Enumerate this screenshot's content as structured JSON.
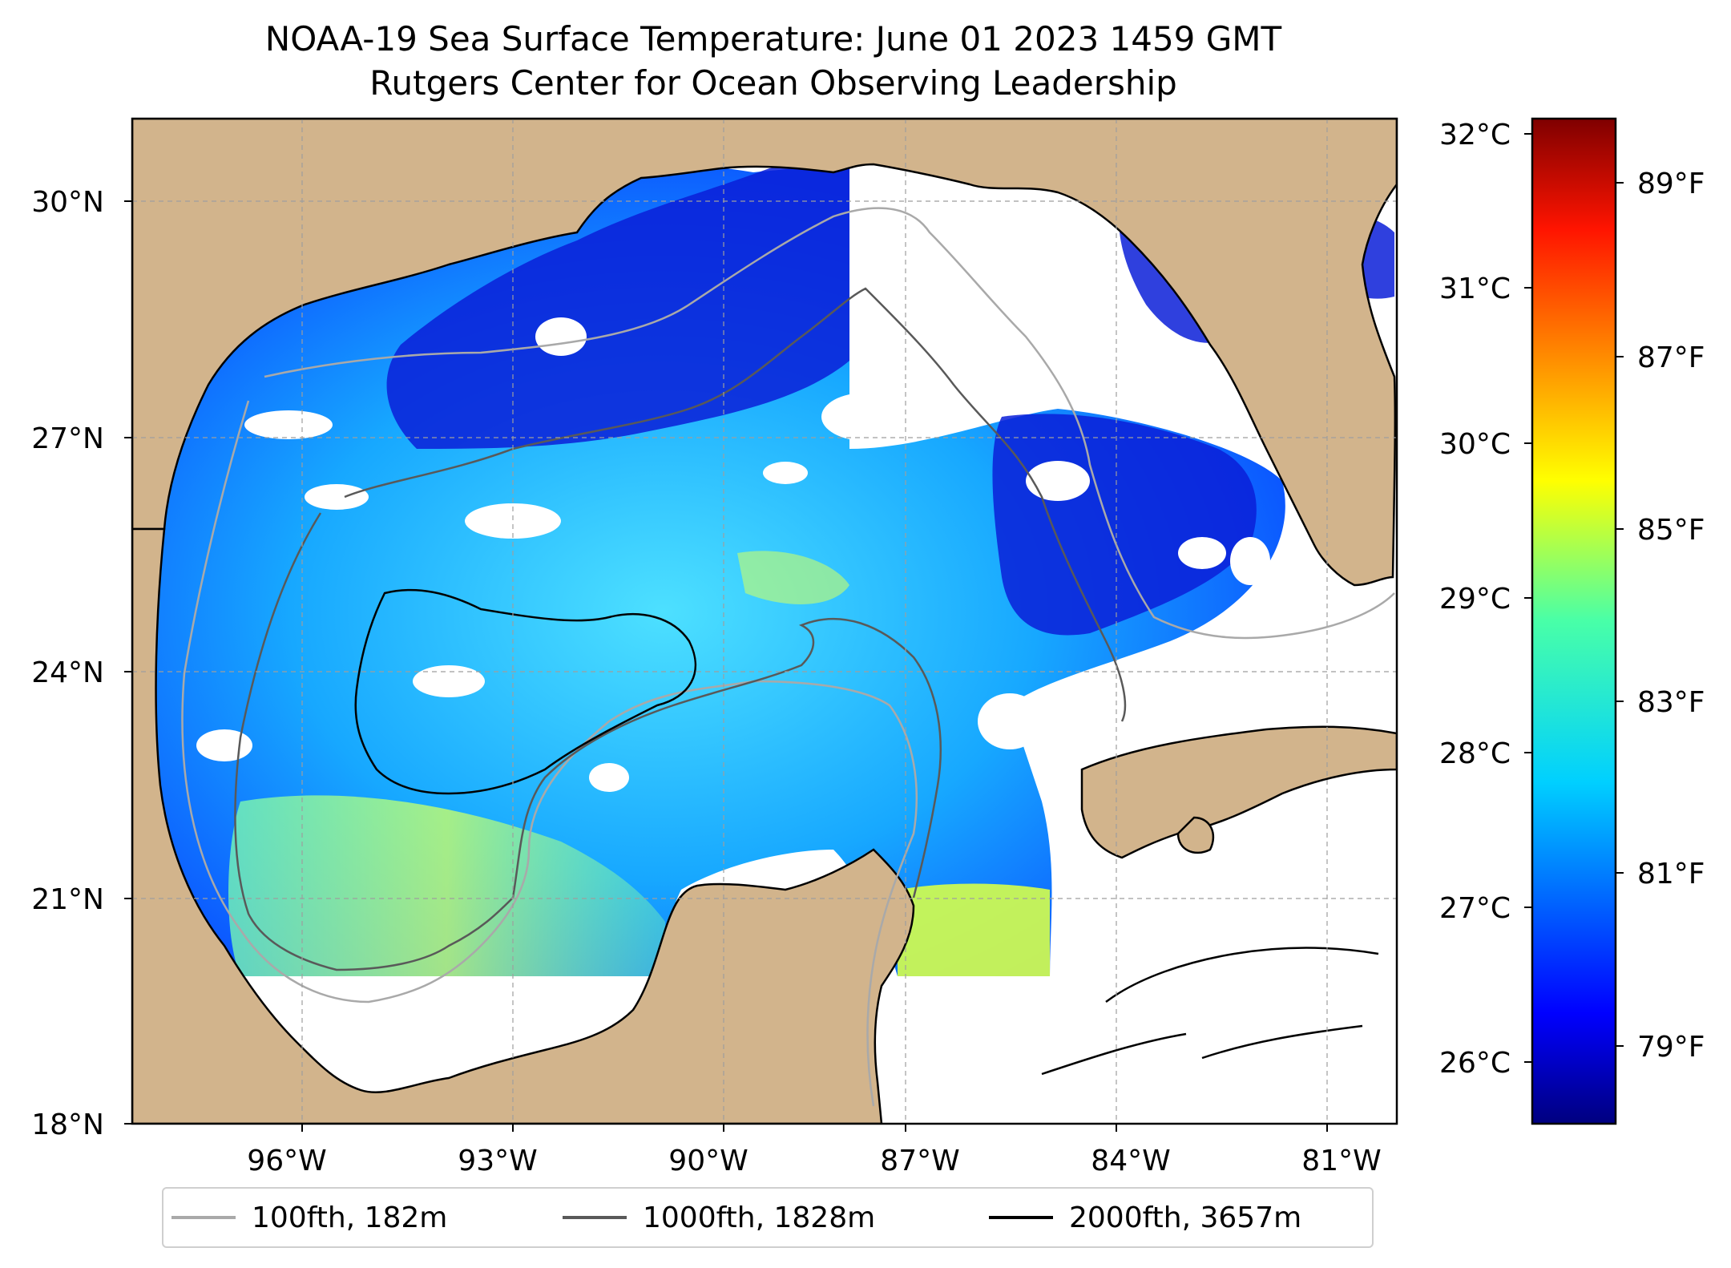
{
  "title": {
    "line1": "NOAA-19 Sea Surface Temperature: June 01 2023 1459 GMT",
    "line2": "Rutgers Center for Ocean Observing Leadership"
  },
  "map": {
    "lat_ticks": [
      {
        "value": 30,
        "label": "30°N"
      },
      {
        "value": 27,
        "label": "27°N"
      },
      {
        "value": 24,
        "label": "24°N"
      },
      {
        "value": 21,
        "label": "21°N"
      },
      {
        "value": 18,
        "label": "18°N"
      }
    ],
    "lon_ticks": [
      {
        "value": -96,
        "label": "96°W"
      },
      {
        "value": -93,
        "label": "93°W"
      },
      {
        "value": -90,
        "label": "90°W"
      },
      {
        "value": -87,
        "label": "87°W"
      },
      {
        "value": -84,
        "label": "84°W"
      },
      {
        "value": -81,
        "label": "81°W"
      }
    ],
    "lon_range": [
      -98.25,
      -80.25
    ],
    "lat_range": [
      18,
      31
    ],
    "land_color": "#d2b48c",
    "gridlines": true
  },
  "colorbar": {
    "celsius_ticks": [
      "32°C",
      "31°C",
      "30°C",
      "29°C",
      "28°C",
      "27°C",
      "26°C"
    ],
    "fahrenheit_ticks": [
      "89°F",
      "87°F",
      "85°F",
      "83°F",
      "81°F",
      "79°F"
    ],
    "colormap": "jet",
    "colors": [
      "#00007f",
      "#0000ff",
      "#007fff",
      "#00ffff",
      "#7fff7f",
      "#ffff00",
      "#ff7f00",
      "#ff0000",
      "#7f0000"
    ]
  },
  "legend": {
    "items": [
      {
        "label": "100fth, 182m",
        "color": "#a9a9a9"
      },
      {
        "label": "1000fth, 1828m",
        "color": "#595959"
      },
      {
        "label": "2000fth, 3657m",
        "color": "#000000"
      }
    ]
  }
}
